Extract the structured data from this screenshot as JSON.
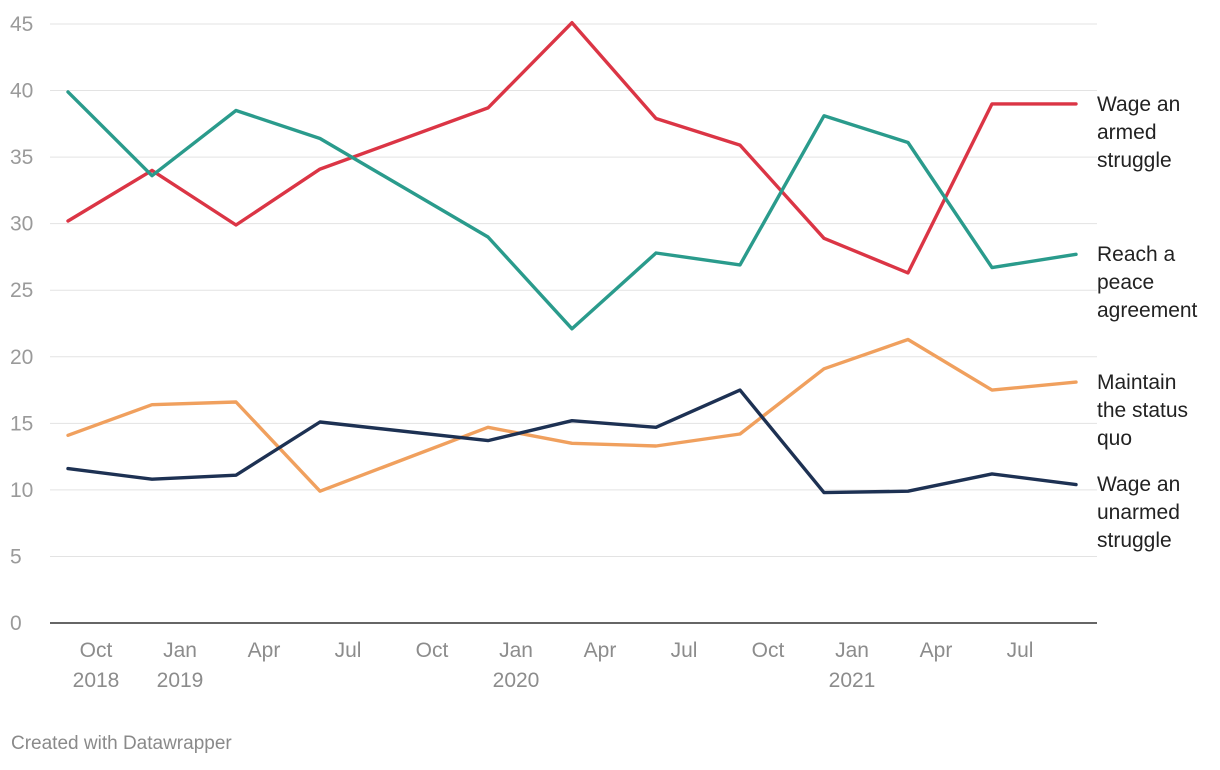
{
  "chart_data": {
    "type": "line",
    "title": "",
    "xlabel": "",
    "ylabel": "",
    "ylim": [
      0,
      45
    ],
    "yticks": [
      0,
      5,
      10,
      15,
      20,
      25,
      30,
      35,
      40,
      45
    ],
    "grid": true,
    "legend": "direct labels at right end of lines",
    "x": [
      "2018-09",
      "2018-12",
      "2019-03",
      "2019-06",
      "2019-12",
      "2020-03",
      "2020-06",
      "2020-09",
      "2020-12",
      "2021-03",
      "2021-06",
      "2021-09"
    ],
    "x_ticks": [
      {
        "date": "2018-10",
        "label": "Oct",
        "year": "2018"
      },
      {
        "date": "2019-01",
        "label": "Jan",
        "year": "2019"
      },
      {
        "date": "2019-04",
        "label": "Apr",
        "year": ""
      },
      {
        "date": "2019-07",
        "label": "Jul",
        "year": ""
      },
      {
        "date": "2019-10",
        "label": "Oct",
        "year": ""
      },
      {
        "date": "2020-01",
        "label": "Jan",
        "year": "2020"
      },
      {
        "date": "2020-04",
        "label": "Apr",
        "year": ""
      },
      {
        "date": "2020-07",
        "label": "Jul",
        "year": ""
      },
      {
        "date": "2020-10",
        "label": "Oct",
        "year": ""
      },
      {
        "date": "2021-01",
        "label": "Jan",
        "year": "2021"
      },
      {
        "date": "2021-04",
        "label": "Apr",
        "year": ""
      },
      {
        "date": "2021-07",
        "label": "Jul",
        "year": ""
      }
    ],
    "series": [
      {
        "name": "Wage an armed struggle",
        "label_lines": [
          "Wage an",
          "armed",
          "struggle"
        ],
        "color": "#db3545",
        "values": [
          30.2,
          34.0,
          29.9,
          34.1,
          38.7,
          45.1,
          37.9,
          35.9,
          28.9,
          26.3,
          39.0,
          39.0
        ]
      },
      {
        "name": "Reach a peace agreement",
        "label_lines": [
          "Reach a",
          "peace",
          "agreement"
        ],
        "color": "#2a9b8c",
        "values": [
          39.9,
          33.6,
          38.5,
          36.4,
          29.0,
          22.1,
          27.8,
          26.9,
          38.1,
          36.1,
          26.7,
          27.7
        ]
      },
      {
        "name": "Maintain the status quo",
        "label_lines": [
          "Maintain",
          "the status",
          "quo"
        ],
        "color": "#f0a05e",
        "values": [
          14.1,
          16.4,
          16.6,
          9.9,
          14.7,
          13.5,
          13.3,
          14.2,
          19.1,
          21.3,
          17.5,
          18.1
        ]
      },
      {
        "name": "Wage an unarmed struggle",
        "label_lines": [
          "Wage an",
          "unarmed",
          "struggle"
        ],
        "color": "#1d3153",
        "values": [
          11.6,
          10.8,
          11.1,
          15.1,
          13.7,
          15.2,
          14.7,
          17.5,
          9.8,
          9.9,
          11.2,
          10.4
        ]
      }
    ]
  },
  "footer": {
    "credit": "Created with Datawrapper"
  }
}
